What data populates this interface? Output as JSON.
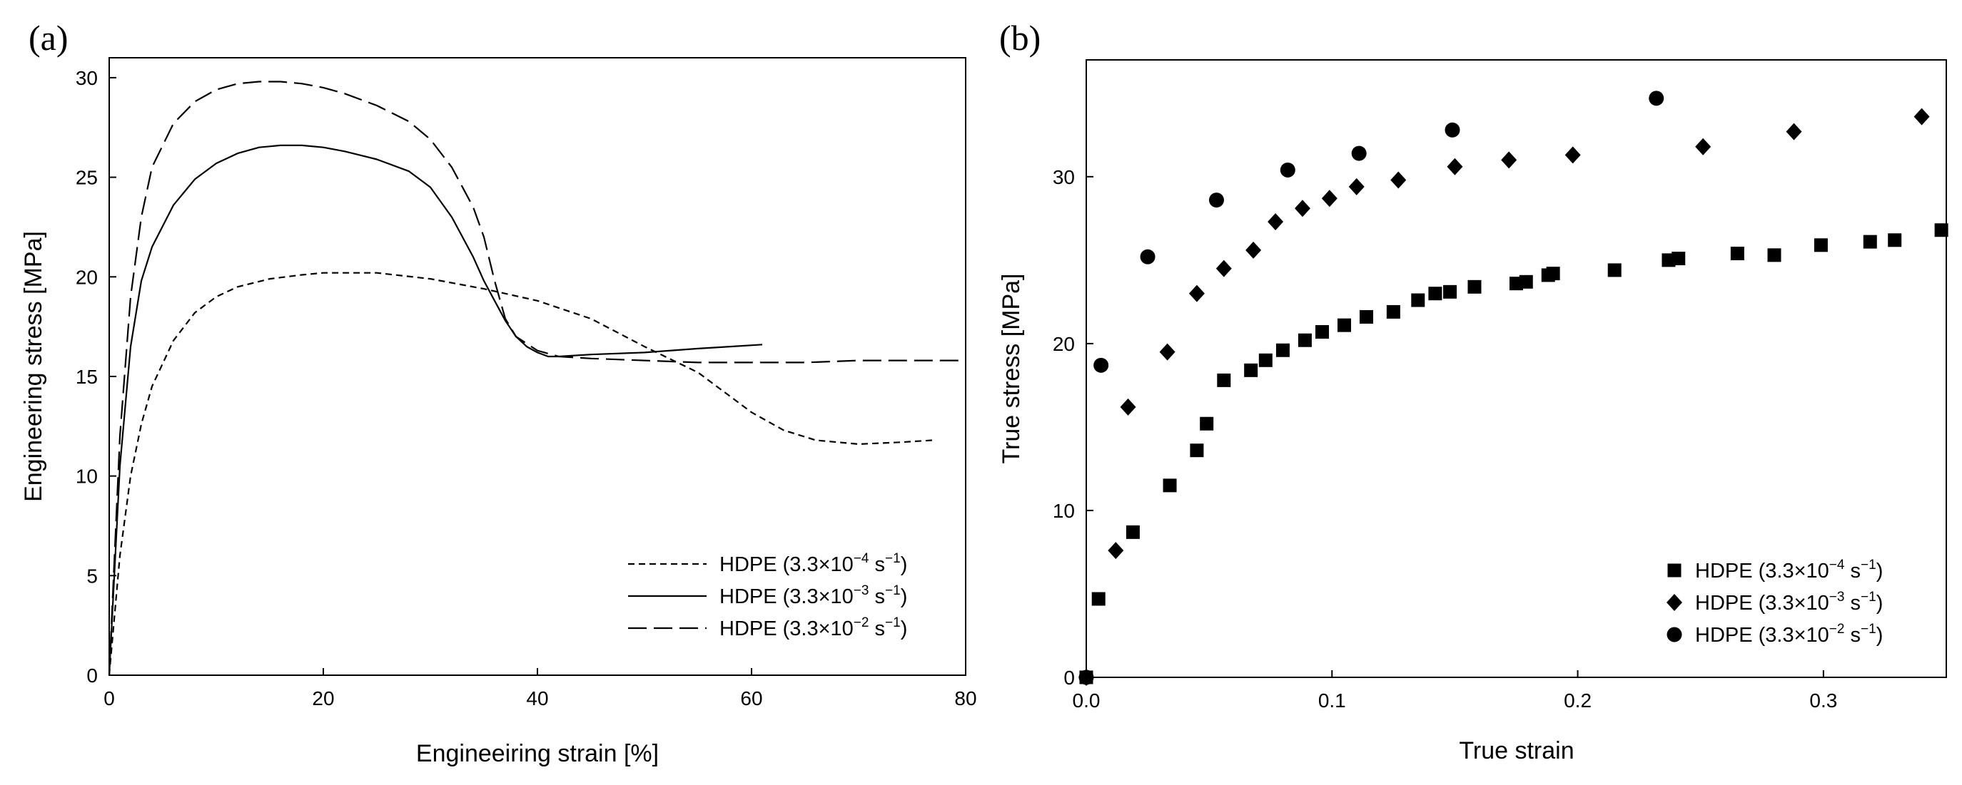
{
  "chart_data": [
    {
      "panel_label": "(a)",
      "type": "line",
      "xlabel": "Engineeiring strain [%]",
      "ylabel": "Engineering stress [MPa]",
      "xlim": [
        0,
        80
      ],
      "ylim": [
        0,
        31
      ],
      "xticks": [
        "0",
        "20",
        "40",
        "60",
        "80"
      ],
      "yticks": [
        "0",
        "5",
        "10",
        "15",
        "20",
        "25",
        "30"
      ],
      "legend_position": "bottom-right",
      "series": [
        {
          "name": "HDPE (3.3×10−4 s−1)",
          "label_main": "HDPE (3.3×10",
          "label_exp": "−4",
          "label_unit": " s",
          "label_unit_exp": "−1",
          "style": "dotted",
          "x": [
            0,
            1,
            2,
            3,
            4,
            6,
            8,
            10,
            12,
            15,
            18,
            20,
            25,
            30,
            35,
            40,
            45,
            50,
            55,
            58,
            60,
            63,
            66,
            70,
            74,
            77
          ],
          "y": [
            0,
            6,
            10,
            12.6,
            14.5,
            16.8,
            18.2,
            19.0,
            19.5,
            19.9,
            20.1,
            20.2,
            20.2,
            19.9,
            19.4,
            18.8,
            17.9,
            16.5,
            15.2,
            14.0,
            13.2,
            12.3,
            11.8,
            11.6,
            11.7,
            11.8
          ]
        },
        {
          "name": "HDPE (3.3×10−3 s−1)",
          "label_main": "HDPE (3.3×10",
          "label_exp": "−3",
          "label_unit": " s",
          "label_unit_exp": "−1",
          "style": "solid",
          "x": [
            0,
            1,
            2,
            3,
            4,
            6,
            8,
            10,
            12,
            14,
            16,
            18,
            20,
            22,
            25,
            28,
            30,
            32,
            34,
            35,
            36,
            37,
            38,
            39,
            40,
            41,
            42,
            45,
            50,
            55,
            58,
            61
          ],
          "y": [
            0,
            10.5,
            16.5,
            19.8,
            21.5,
            23.6,
            24.9,
            25.7,
            26.2,
            26.5,
            26.6,
            26.6,
            26.5,
            26.3,
            25.9,
            25.3,
            24.5,
            23.0,
            21.0,
            19.8,
            18.8,
            17.8,
            17.0,
            16.5,
            16.2,
            16.0,
            16.0,
            16.1,
            16.2,
            16.4,
            16.5,
            16.6
          ]
        },
        {
          "name": "HDPE (3.3×10−2 s−1)",
          "label_main": "HDPE (3.3×10",
          "label_exp": "−2",
          "label_unit": " s",
          "label_unit_exp": "−1",
          "style": "dashed",
          "x": [
            0,
            1,
            2,
            3,
            4,
            6,
            8,
            10,
            12,
            14,
            16,
            18,
            20,
            22,
            25,
            28,
            30,
            32,
            34,
            35,
            36,
            37,
            38,
            40,
            42,
            45,
            50,
            55,
            60,
            65,
            70,
            80
          ],
          "y": [
            0,
            12,
            19,
            23,
            25.5,
            27.7,
            28.8,
            29.4,
            29.7,
            29.8,
            29.8,
            29.7,
            29.5,
            29.2,
            28.6,
            27.8,
            26.9,
            25.5,
            23.5,
            22.0,
            19.8,
            17.9,
            17.0,
            16.3,
            16.0,
            15.9,
            15.8,
            15.7,
            15.7,
            15.7,
            15.8,
            15.8
          ]
        }
      ]
    },
    {
      "panel_label": "(b)",
      "type": "scatter",
      "xlabel": "True strain",
      "ylabel": "True stress [MPa]",
      "xlim": [
        0,
        0.35
      ],
      "ylim": [
        0,
        37
      ],
      "xticks": [
        "0.0",
        "0.1",
        "0.2",
        "0.3"
      ],
      "xtick_values": [
        0,
        0.1,
        0.2,
        0.3
      ],
      "yticks": [
        "0",
        "10",
        "20",
        "30"
      ],
      "ytick_values": [
        0,
        10,
        20,
        30
      ],
      "legend_position": "bottom-right",
      "series": [
        {
          "name": "HDPE (3.3×10−4 s−1)",
          "label_main": "HDPE (3.3×10",
          "label_exp": "−4",
          "label_unit": " s",
          "label_unit_exp": "−1",
          "marker": "square",
          "x": [
            0,
            0.005,
            0.019,
            0.034,
            0.045,
            0.049,
            0.056,
            0.067,
            0.073,
            0.08,
            0.089,
            0.096,
            0.105,
            0.114,
            0.125,
            0.135,
            0.142,
            0.148,
            0.158,
            0.175,
            0.179,
            0.188,
            0.19,
            0.215,
            0.237,
            0.241,
            0.265,
            0.28,
            0.299,
            0.319,
            0.329,
            0.348
          ],
          "y": [
            0,
            4.7,
            8.7,
            11.5,
            13.6,
            15.2,
            17.8,
            18.4,
            19.0,
            19.6,
            20.2,
            20.7,
            21.1,
            21.6,
            21.9,
            22.6,
            23.0,
            23.1,
            23.4,
            23.6,
            23.7,
            24.1,
            24.2,
            24.4,
            25.0,
            25.1,
            25.4,
            25.3,
            25.9,
            26.1,
            26.2,
            26.8
          ]
        },
        {
          "name": "HDPE (3.3×10−3 s−1)",
          "label_main": "HDPE (3.3×10",
          "label_exp": "−3",
          "label_unit": " s",
          "label_unit_exp": "−1",
          "marker": "diamond",
          "x": [
            0,
            0.012,
            0.017,
            0.033,
            0.045,
            0.056,
            0.068,
            0.077,
            0.088,
            0.099,
            0.11,
            0.127,
            0.15,
            0.172,
            0.198,
            0.251,
            0.288,
            0.34
          ],
          "y": [
            0,
            7.6,
            16.2,
            19.5,
            23.0,
            24.5,
            25.6,
            27.3,
            28.1,
            28.7,
            29.4,
            29.8,
            30.6,
            31.0,
            31.3,
            31.8,
            32.7,
            33.6
          ]
        },
        {
          "name": "HDPE (3.3×10−2 s−1)",
          "label_main": "HDPE (3.3×10",
          "label_exp": "−2",
          "label_unit": " s",
          "label_unit_exp": "−1",
          "marker": "circle",
          "x": [
            0,
            0.006,
            0.025,
            0.053,
            0.082,
            0.111,
            0.149,
            0.232
          ],
          "y": [
            0,
            18.7,
            25.2,
            28.6,
            30.4,
            31.4,
            32.8,
            34.7
          ]
        }
      ]
    }
  ]
}
